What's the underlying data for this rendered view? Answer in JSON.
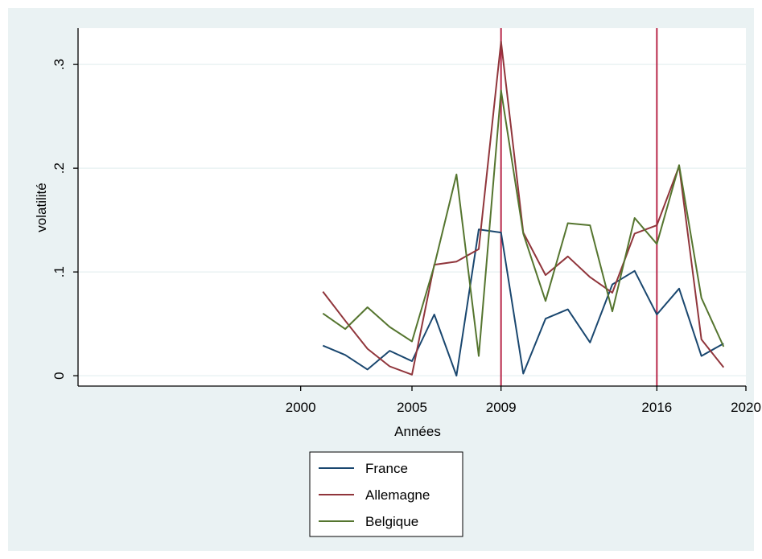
{
  "colors": {
    "outer_bg": "#eaf2f3",
    "plot_bg": "#ffffff",
    "grid": "#eaf2f3",
    "axis": "#000000",
    "vline": "#b8284a"
  },
  "chart_data": {
    "type": "line",
    "xlabel": "Années",
    "ylabel": "volatilité",
    "xlim": [
      1990,
      2020
    ],
    "ylim": [
      -0.01,
      0.335
    ],
    "xticks": [
      {
        "value": 2000,
        "label": "2000"
      },
      {
        "value": 2005,
        "label": "2005"
      },
      {
        "value": 2009,
        "label": "2009"
      },
      {
        "value": 2016,
        "label": "2016"
      },
      {
        "value": 2020,
        "label": "2020"
      }
    ],
    "yticks": [
      {
        "value": 0,
        "label": "0"
      },
      {
        "value": 0.1,
        "label": ".1"
      },
      {
        "value": 0.2,
        "label": ".2"
      },
      {
        "value": 0.3,
        "label": ".3"
      }
    ],
    "grid": true,
    "vlines": [
      2009,
      2016
    ],
    "legend_position": "bottom",
    "x": [
      2001,
      2002,
      2003,
      2004,
      2005,
      2006,
      2007,
      2008,
      2009,
      2010,
      2011,
      2012,
      2013,
      2014,
      2015,
      2016,
      2017,
      2018,
      2019
    ],
    "series": [
      {
        "name": "France",
        "color": "#1a476f",
        "values": [
          0.029,
          0.02,
          0.006,
          0.024,
          0.014,
          0.059,
          0.0,
          0.141,
          0.138,
          0.002,
          0.055,
          0.064,
          0.032,
          0.088,
          0.101,
          0.059,
          0.084,
          0.019,
          0.031
        ]
      },
      {
        "name": "Allemagne",
        "color": "#90353b",
        "values": [
          0.081,
          0.053,
          0.026,
          0.009,
          0.001,
          0.107,
          0.11,
          0.122,
          0.322,
          0.138,
          0.097,
          0.115,
          0.095,
          0.08,
          0.137,
          0.145,
          0.202,
          0.035,
          0.008
        ]
      },
      {
        "name": "Belgique",
        "color": "#55752f",
        "values": [
          0.06,
          0.045,
          0.066,
          0.047,
          0.033,
          0.106,
          0.194,
          0.019,
          0.275,
          0.137,
          0.072,
          0.147,
          0.145,
          0.062,
          0.152,
          0.127,
          0.203,
          0.075,
          0.028
        ]
      }
    ]
  }
}
